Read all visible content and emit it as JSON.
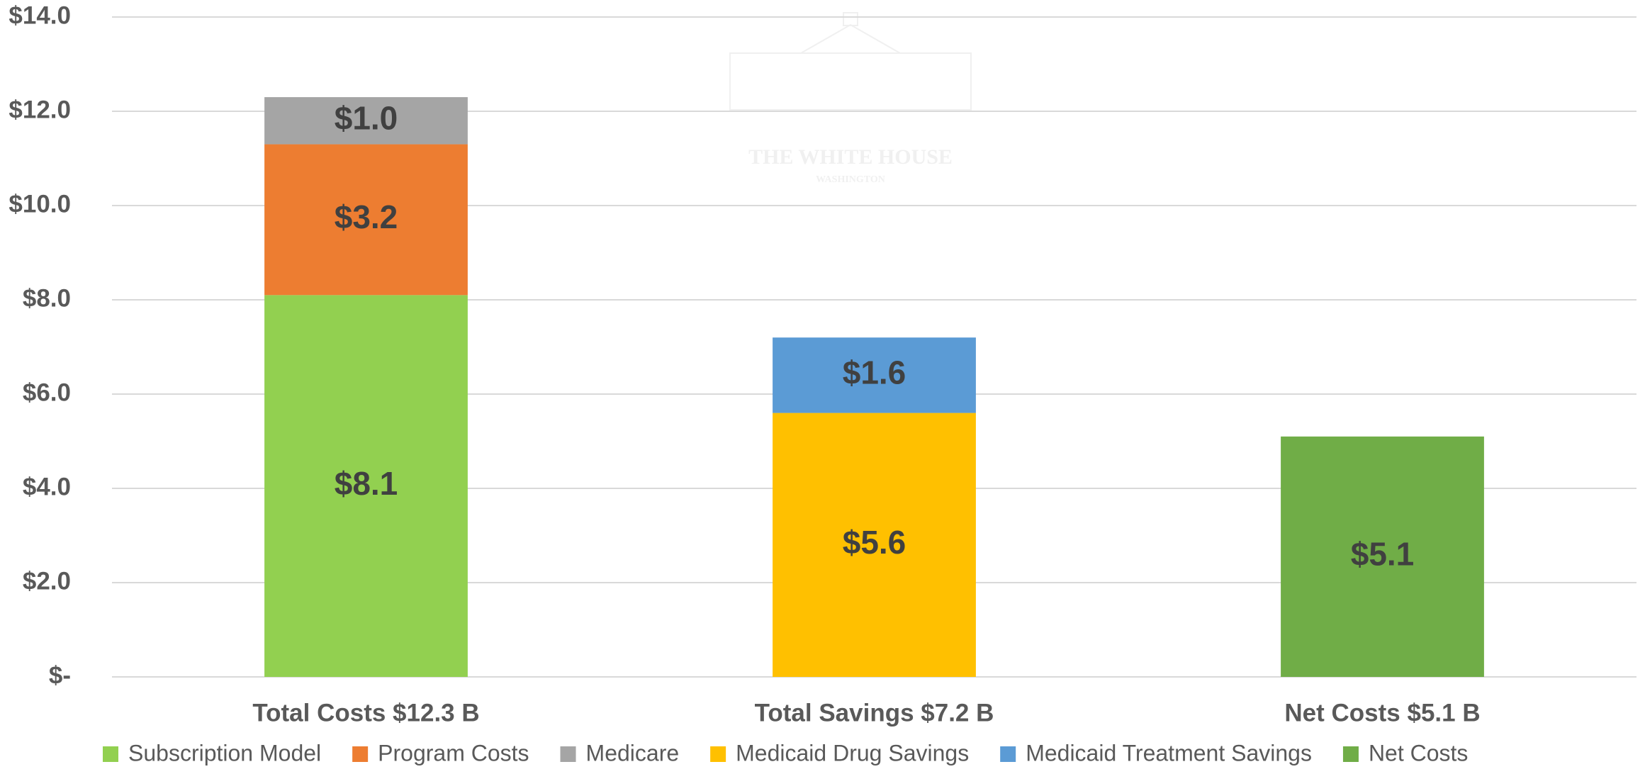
{
  "chart_data": {
    "type": "stacked_bar",
    "annotations": [
      "THE WHITE HOUSE",
      "WASHINGTON"
    ],
    "categories": [
      "Total Costs $12.3 B",
      "Total Savings $7.2 B",
      "Net Costs $5.1 B"
    ],
    "series": [
      {
        "name": "Subscription Model",
        "color": "#92d050",
        "values": [
          8.1,
          null,
          null
        ],
        "value_labels": [
          "$8.1",
          null,
          null
        ]
      },
      {
        "name": "Program Costs",
        "color": "#ed7d31",
        "values": [
          3.2,
          null,
          null
        ],
        "value_labels": [
          "$3.2",
          null,
          null
        ]
      },
      {
        "name": "Medicare",
        "color": "#a5a5a5",
        "values": [
          1.0,
          null,
          null
        ],
        "value_labels": [
          "$1.0",
          null,
          null
        ]
      },
      {
        "name": "Medicaid Drug Savings",
        "color": "#ffc000",
        "values": [
          null,
          5.6,
          null
        ],
        "value_labels": [
          null,
          "$5.6",
          null
        ]
      },
      {
        "name": "Medicaid Treatment Savings",
        "color": "#5b9bd5",
        "values": [
          null,
          1.6,
          null
        ],
        "value_labels": [
          null,
          "$1.6",
          null
        ]
      },
      {
        "name": "Net Costs",
        "color": "#70ad47",
        "values": [
          null,
          null,
          5.1
        ],
        "value_labels": [
          null,
          null,
          "$5.1"
        ]
      }
    ],
    "ylim": [
      0,
      14
    ],
    "yticks": [
      {
        "value": 0,
        "label": "$-"
      },
      {
        "value": 2,
        "label": "$2.0"
      },
      {
        "value": 4,
        "label": "$4.0"
      },
      {
        "value": 6,
        "label": "$6.0"
      },
      {
        "value": 8,
        "label": "$8.0"
      },
      {
        "value": 10,
        "label": "$10.0"
      },
      {
        "value": 12,
        "label": "$12.0"
      },
      {
        "value": 14,
        "label": "$14.0"
      }
    ],
    "grid": true,
    "legend": "bottom"
  }
}
